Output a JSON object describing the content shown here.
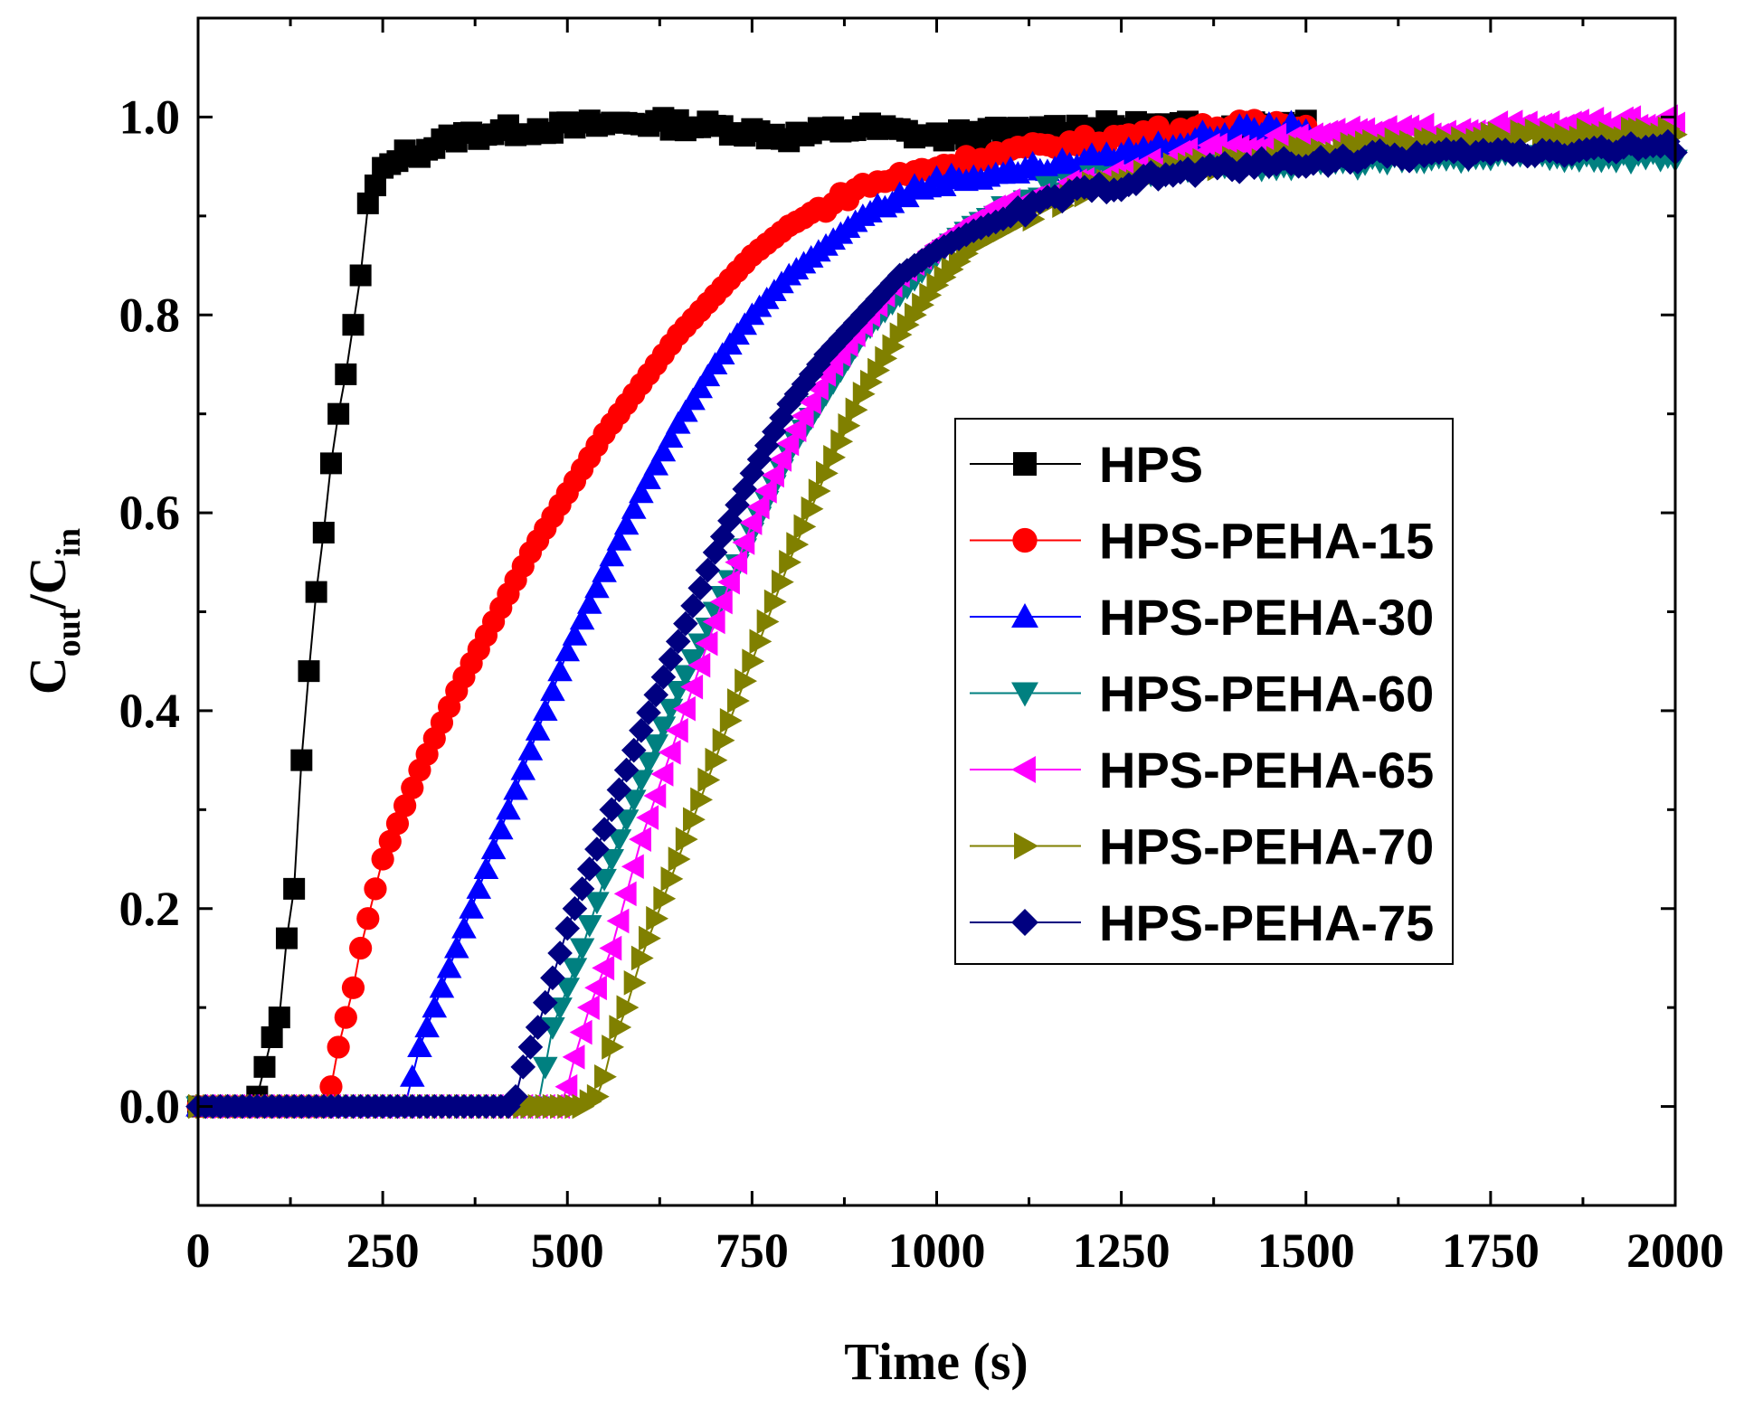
{
  "chart_data": {
    "type": "scatter",
    "title": "",
    "xlabel": "Time (s)",
    "ylabel": {
      "main": "C",
      "sub1": "out",
      "slash": "/C",
      "sub2": "in"
    },
    "xlim": [
      0,
      2000
    ],
    "ylim": [
      -0.1,
      1.1
    ],
    "xticks": [
      0,
      250,
      500,
      750,
      1000,
      1250,
      1500,
      1750,
      2000
    ],
    "xtick_labels": [
      "0",
      "250",
      "500",
      "750",
      "1000",
      "1250",
      "1500",
      "1750",
      "2000"
    ],
    "yticks": [
      0.0,
      0.2,
      0.4,
      0.6,
      0.8,
      1.0
    ],
    "ytick_labels": [
      "0.0",
      "0.2",
      "0.4",
      "0.6",
      "0.8",
      "1.0"
    ],
    "grid": false,
    "legend_position": "center-right",
    "series": [
      {
        "name": "HPS",
        "color": "#000000",
        "marker": "square",
        "end": 1500,
        "points": [
          [
            0,
            0
          ],
          [
            70,
            0
          ],
          [
            80,
            0.01
          ],
          [
            90,
            0.04
          ],
          [
            100,
            0.07
          ],
          [
            110,
            0.09
          ],
          [
            120,
            0.17
          ],
          [
            130,
            0.22
          ],
          [
            140,
            0.35
          ],
          [
            150,
            0.44
          ],
          [
            160,
            0.52
          ],
          [
            170,
            0.58
          ],
          [
            180,
            0.65
          ],
          [
            190,
            0.7
          ],
          [
            200,
            0.74
          ],
          [
            210,
            0.79
          ],
          [
            220,
            0.84
          ],
          [
            230,
            0.91
          ],
          [
            245,
            0.94
          ],
          [
            270,
            0.96
          ],
          [
            300,
            0.965
          ],
          [
            350,
            0.98
          ],
          [
            400,
            0.985
          ],
          [
            500,
            0.99
          ],
          [
            600,
            0.995
          ],
          [
            700,
            0.99
          ],
          [
            800,
            0.98
          ],
          [
            900,
            0.99
          ],
          [
            1000,
            0.98
          ],
          [
            1100,
            0.985
          ],
          [
            1200,
            0.99
          ],
          [
            1300,
            0.99
          ],
          [
            1400,
            0.99
          ],
          [
            1500,
            0.995
          ]
        ]
      },
      {
        "name": "HPS-PEHA-15",
        "color": "#ff0000",
        "marker": "circle",
        "end": 1500,
        "points": [
          [
            0,
            0
          ],
          [
            170,
            0
          ],
          [
            180,
            0.02
          ],
          [
            190,
            0.06
          ],
          [
            200,
            0.09
          ],
          [
            210,
            0.12
          ],
          [
            220,
            0.16
          ],
          [
            250,
            0.25
          ],
          [
            300,
            0.34
          ],
          [
            350,
            0.42
          ],
          [
            400,
            0.49
          ],
          [
            450,
            0.56
          ],
          [
            500,
            0.62
          ],
          [
            550,
            0.68
          ],
          [
            600,
            0.73
          ],
          [
            650,
            0.78
          ],
          [
            700,
            0.82
          ],
          [
            750,
            0.86
          ],
          [
            800,
            0.89
          ],
          [
            850,
            0.91
          ],
          [
            900,
            0.93
          ],
          [
            950,
            0.94
          ],
          [
            1000,
            0.95
          ],
          [
            1100,
            0.965
          ],
          [
            1200,
            0.975
          ],
          [
            1300,
            0.985
          ],
          [
            1400,
            0.99
          ],
          [
            1500,
            0.995
          ]
        ]
      },
      {
        "name": "HPS-PEHA-30",
        "color": "#0000ff",
        "marker": "triangle-up",
        "end": 1500,
        "points": [
          [
            0,
            0
          ],
          [
            280,
            0
          ],
          [
            290,
            0.03
          ],
          [
            300,
            0.06
          ],
          [
            320,
            0.1
          ],
          [
            350,
            0.16
          ],
          [
            400,
            0.26
          ],
          [
            450,
            0.36
          ],
          [
            500,
            0.46
          ],
          [
            550,
            0.54
          ],
          [
            600,
            0.62
          ],
          [
            650,
            0.69
          ],
          [
            700,
            0.75
          ],
          [
            750,
            0.8
          ],
          [
            800,
            0.84
          ],
          [
            850,
            0.87
          ],
          [
            900,
            0.9
          ],
          [
            950,
            0.92
          ],
          [
            1000,
            0.935
          ],
          [
            1050,
            0.94
          ],
          [
            1100,
            0.945
          ],
          [
            1200,
            0.955
          ],
          [
            1300,
            0.97
          ],
          [
            1400,
            0.985
          ],
          [
            1500,
            0.99
          ]
        ]
      },
      {
        "name": "HPS-PEHA-60",
        "color": "#008080",
        "marker": "triangle-down",
        "end": 2000,
        "points": [
          [
            0,
            0
          ],
          [
            460,
            0
          ],
          [
            470,
            0.04
          ],
          [
            480,
            0.08
          ],
          [
            500,
            0.12
          ],
          [
            520,
            0.16
          ],
          [
            550,
            0.23
          ],
          [
            600,
            0.33
          ],
          [
            650,
            0.42
          ],
          [
            700,
            0.5
          ],
          [
            750,
            0.58
          ],
          [
            800,
            0.66
          ],
          [
            850,
            0.72
          ],
          [
            900,
            0.78
          ],
          [
            950,
            0.82
          ],
          [
            1000,
            0.86
          ],
          [
            1050,
            0.89
          ],
          [
            1100,
            0.91
          ],
          [
            1150,
            0.925
          ],
          [
            1200,
            0.935
          ],
          [
            1300,
            0.945
          ],
          [
            1400,
            0.95
          ],
          [
            1600,
            0.955
          ],
          [
            1800,
            0.96
          ],
          [
            2000,
            0.96
          ]
        ]
      },
      {
        "name": "HPS-PEHA-65",
        "color": "#ff00ff",
        "marker": "triangle-left",
        "end": 2000,
        "points": [
          [
            0,
            0
          ],
          [
            490,
            0
          ],
          [
            500,
            0.02
          ],
          [
            510,
            0.05
          ],
          [
            530,
            0.1
          ],
          [
            560,
            0.16
          ],
          [
            600,
            0.27
          ],
          [
            650,
            0.38
          ],
          [
            700,
            0.49
          ],
          [
            750,
            0.59
          ],
          [
            800,
            0.67
          ],
          [
            850,
            0.74
          ],
          [
            900,
            0.79
          ],
          [
            950,
            0.84
          ],
          [
            1000,
            0.87
          ],
          [
            1050,
            0.895
          ],
          [
            1100,
            0.91
          ],
          [
            1200,
            0.935
          ],
          [
            1300,
            0.955
          ],
          [
            1400,
            0.97
          ],
          [
            1500,
            0.98
          ],
          [
            1600,
            0.985
          ],
          [
            1800,
            0.99
          ],
          [
            2000,
            0.995
          ]
        ]
      },
      {
        "name": "HPS-PEHA-70",
        "color": "#808000",
        "marker": "triangle-right",
        "end": 2000,
        "points": [
          [
            0,
            0
          ],
          [
            520,
            0
          ],
          [
            540,
            0.01
          ],
          [
            550,
            0.03
          ],
          [
            560,
            0.06
          ],
          [
            580,
            0.1
          ],
          [
            600,
            0.15
          ],
          [
            650,
            0.25
          ],
          [
            700,
            0.35
          ],
          [
            750,
            0.45
          ],
          [
            800,
            0.55
          ],
          [
            850,
            0.64
          ],
          [
            900,
            0.72
          ],
          [
            950,
            0.78
          ],
          [
            1000,
            0.83
          ],
          [
            1050,
            0.87
          ],
          [
            1100,
            0.89
          ],
          [
            1150,
            0.91
          ],
          [
            1200,
            0.925
          ],
          [
            1300,
            0.945
          ],
          [
            1400,
            0.955
          ],
          [
            1500,
            0.965
          ],
          [
            1600,
            0.97
          ],
          [
            1800,
            0.98
          ],
          [
            2000,
            0.985
          ]
        ]
      },
      {
        "name": "HPS-PEHA-75",
        "color": "#000080",
        "marker": "diamond",
        "end": 2000,
        "points": [
          [
            0,
            0
          ],
          [
            420,
            0
          ],
          [
            430,
            0.01
          ],
          [
            440,
            0.04
          ],
          [
            460,
            0.08
          ],
          [
            480,
            0.13
          ],
          [
            500,
            0.18
          ],
          [
            550,
            0.28
          ],
          [
            600,
            0.38
          ],
          [
            650,
            0.47
          ],
          [
            700,
            0.56
          ],
          [
            750,
            0.64
          ],
          [
            800,
            0.71
          ],
          [
            850,
            0.76
          ],
          [
            900,
            0.8
          ],
          [
            950,
            0.84
          ],
          [
            1000,
            0.865
          ],
          [
            1050,
            0.885
          ],
          [
            1100,
            0.9
          ],
          [
            1150,
            0.915
          ],
          [
            1200,
            0.925
          ],
          [
            1300,
            0.94
          ],
          [
            1400,
            0.95
          ],
          [
            1600,
            0.96
          ],
          [
            1800,
            0.965
          ],
          [
            2000,
            0.97
          ]
        ]
      }
    ]
  }
}
